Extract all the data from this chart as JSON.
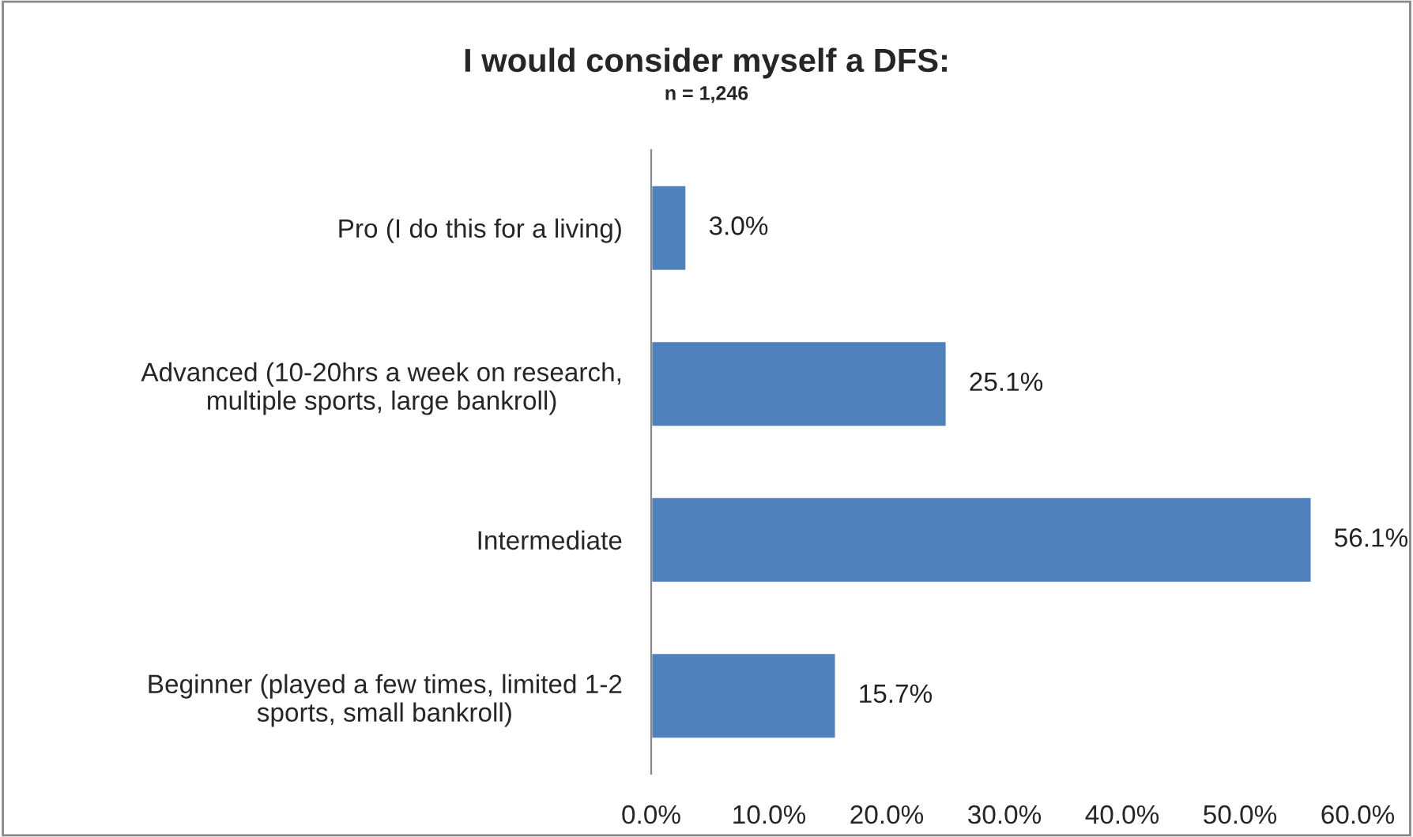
{
  "chart_data": {
    "type": "bar",
    "orientation": "horizontal",
    "title": "I would consider myself a DFS:",
    "subtitle": "n = 1,246",
    "categories": [
      "Pro (I do this for a living)",
      "Advanced (10-20hrs a week on research,\nmultiple sports, large bankroll)",
      "Intermediate",
      "Beginner (played a few times, limited 1-2\nsports, small bankroll)"
    ],
    "values": [
      3.0,
      25.1,
      56.1,
      15.7
    ],
    "value_labels": [
      "3.0%",
      "25.1%",
      "56.1%",
      "15.7%"
    ],
    "color": "#4f81bd",
    "xlim": [
      0,
      60
    ],
    "xticks": [
      {
        "value": 0,
        "label": "0.0%"
      },
      {
        "value": 10,
        "label": "10.0%"
      },
      {
        "value": 20,
        "label": "20.0%"
      },
      {
        "value": 30,
        "label": "30.0%"
      },
      {
        "value": 40,
        "label": "40.0%"
      },
      {
        "value": 50,
        "label": "50.0%"
      },
      {
        "value": 60,
        "label": "60.0%"
      }
    ],
    "grid": false,
    "legend": false
  }
}
